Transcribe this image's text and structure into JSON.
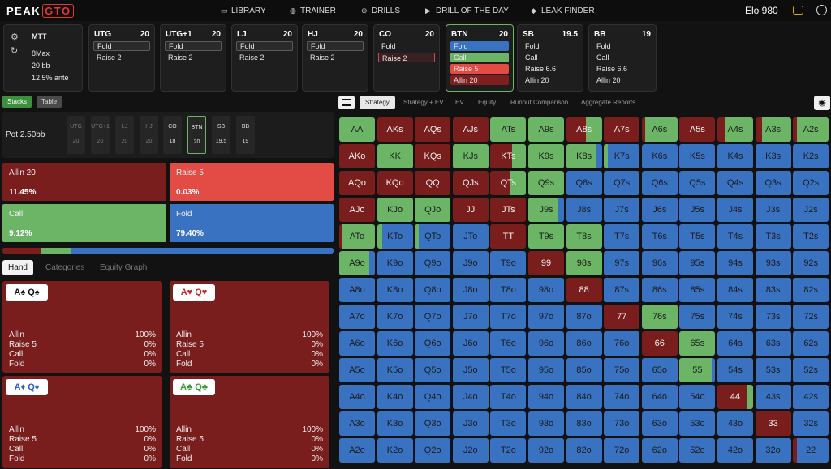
{
  "brand": {
    "name": "PEAK",
    "badge": "GTO"
  },
  "nav": [
    {
      "label": "LIBRARY",
      "icon": "monitor-icon",
      "glyph": "▭"
    },
    {
      "label": "TRAINER",
      "icon": "gamepad-icon",
      "glyph": "◍"
    },
    {
      "label": "DRILLS",
      "icon": "target-icon",
      "glyph": "⊕"
    },
    {
      "label": "DRILL OF THE DAY",
      "icon": "play-circle-icon",
      "glyph": "▶"
    },
    {
      "label": "LEAK FINDER",
      "icon": "drop-icon",
      "glyph": "◆"
    }
  ],
  "elo": "Elo 980",
  "game": {
    "type": "MTT",
    "table": "8Max",
    "stack": "20 bb",
    "ante": "12.5% ante"
  },
  "positions": [
    {
      "name": "UTG",
      "stack": "20",
      "options": [
        {
          "label": "Fold",
          "style": "sel"
        },
        {
          "label": "Raise 2",
          "style": ""
        }
      ]
    },
    {
      "name": "UTG+1",
      "stack": "20",
      "options": [
        {
          "label": "Fold",
          "style": "sel"
        },
        {
          "label": "Raise 2",
          "style": ""
        }
      ]
    },
    {
      "name": "LJ",
      "stack": "20",
      "options": [
        {
          "label": "Fold",
          "style": "sel"
        },
        {
          "label": "Raise 2",
          "style": ""
        }
      ]
    },
    {
      "name": "HJ",
      "stack": "20",
      "options": [
        {
          "label": "Fold",
          "style": "sel"
        },
        {
          "label": "Raise 2",
          "style": ""
        }
      ]
    },
    {
      "name": "CO",
      "stack": "20",
      "options": [
        {
          "label": "Fold",
          "style": ""
        },
        {
          "label": "Raise 2",
          "style": "red"
        }
      ]
    },
    {
      "name": "BTN",
      "stack": "20",
      "options": [
        {
          "label": "Fold",
          "style": "fblue"
        },
        {
          "label": "Call",
          "style": "fgreen"
        },
        {
          "label": "Raise 5",
          "style": "fred"
        },
        {
          "label": "Allin 20",
          "style": "fdark"
        }
      ]
    },
    {
      "name": "SB",
      "stack": "19.5",
      "options": [
        {
          "label": "Fold",
          "style": ""
        },
        {
          "label": "Call",
          "style": ""
        },
        {
          "label": "Raise 6.6",
          "style": ""
        },
        {
          "label": "Allin 20",
          "style": ""
        }
      ]
    },
    {
      "name": "BB",
      "stack": "19",
      "options": [
        {
          "label": "Fold",
          "style": ""
        },
        {
          "label": "Call",
          "style": ""
        },
        {
          "label": "Raise 6.6",
          "style": ""
        },
        {
          "label": "Allin 20",
          "style": ""
        }
      ]
    }
  ],
  "tags": {
    "stacks": "Stacks",
    "table": "Table"
  },
  "pot": "Pot  2.50bb",
  "seats": [
    {
      "name": "UTG",
      "stack": "20"
    },
    {
      "name": "UTG+1",
      "stack": "20"
    },
    {
      "name": "LJ",
      "stack": "20"
    },
    {
      "name": "HJ",
      "stack": "20"
    },
    {
      "name": "CO",
      "stack": "18"
    },
    {
      "name": "BTN",
      "stack": "20"
    },
    {
      "name": "SB",
      "stack": "19.5"
    },
    {
      "name": "BB",
      "stack": "19"
    }
  ],
  "actions": [
    {
      "label": "Allin 20",
      "value": "11.45%",
      "color": "#7a1d1d"
    },
    {
      "label": "Raise 5",
      "value": "0.03%",
      "color": "#e34b45"
    },
    {
      "label": "Call",
      "value": "9.12%",
      "color": "#6cb567"
    },
    {
      "label": "Fold",
      "value": "79.40%",
      "color": "#3a72c2"
    }
  ],
  "freq_bar": {
    "allin": 11.45,
    "raise": 0.03,
    "call": 9.12,
    "fold": 79.4
  },
  "hand_tabs": [
    "Hand",
    "Categories",
    "Equity Graph"
  ],
  "hands": [
    {
      "card1": "A♠",
      "card2": "Q♠",
      "suit_color": "#111111",
      "rows": [
        [
          "Allin",
          "100%"
        ],
        [
          "Raise 5",
          "0%"
        ],
        [
          "Call",
          "0%"
        ],
        [
          "Fold",
          "0%"
        ]
      ]
    },
    {
      "card1": "A♥",
      "card2": "Q♥",
      "suit_color": "#c8262b",
      "rows": [
        [
          "Allin",
          "100%"
        ],
        [
          "Raise 5",
          "0%"
        ],
        [
          "Call",
          "0%"
        ],
        [
          "Fold",
          "0%"
        ]
      ]
    },
    {
      "card1": "A♦",
      "card2": "Q♦",
      "suit_color": "#2a5fc4",
      "rows": [
        [
          "Allin",
          "100%"
        ],
        [
          "Raise 5",
          "0%"
        ],
        [
          "Call",
          "0%"
        ],
        [
          "Fold",
          "0%"
        ]
      ]
    },
    {
      "card1": "A♣",
      "card2": "Q♣",
      "suit_color": "#3a9a3a",
      "rows": [
        [
          "Allin",
          "100%"
        ],
        [
          "Raise 5",
          "0%"
        ],
        [
          "Call",
          "0%"
        ],
        [
          "Fold",
          "0%"
        ]
      ]
    }
  ],
  "tabs": [
    "Strategy",
    "Strategy + EV",
    "EV",
    "Equity",
    "Runout Comparison",
    "Aggregate Reports"
  ],
  "colors": {
    "allin": "#7a1d1d",
    "raise": "#e34b45",
    "call": "#6cb567",
    "fold": "#3a72c2"
  },
  "matrix_fractions": [
    [
      [
        0,
        0,
        1,
        0
      ],
      [
        1,
        0,
        0,
        0
      ],
      [
        1,
        0,
        0,
        0
      ],
      [
        1,
        0,
        0,
        0
      ],
      [
        0,
        0,
        1,
        0
      ],
      [
        0,
        0,
        1,
        0
      ],
      [
        0.55,
        0,
        0.45,
        0
      ],
      [
        1,
        0,
        0,
        0
      ],
      [
        0.1,
        0,
        0.9,
        0
      ],
      [
        1,
        0,
        0,
        0
      ],
      [
        0.2,
        0,
        0.8,
        0
      ],
      [
        0.2,
        0,
        0.8,
        0
      ],
      [
        0.1,
        0,
        0.9,
        0
      ]
    ],
    [
      [
        1,
        0,
        0,
        0
      ],
      [
        0,
        0,
        1,
        0
      ],
      [
        1,
        0,
        0,
        0
      ],
      [
        0,
        0,
        1,
        0
      ],
      [
        0.6,
        0,
        0.4,
        0
      ],
      [
        0,
        0,
        1,
        0
      ],
      [
        0,
        0,
        0.85,
        0.15
      ],
      [
        0,
        0,
        0.1,
        0.9
      ],
      [
        0,
        0,
        0,
        1
      ],
      [
        0,
        0,
        0,
        1
      ],
      [
        0,
        0,
        0,
        1
      ],
      [
        0,
        0,
        0,
        1
      ],
      [
        0,
        0,
        0,
        1
      ]
    ],
    [
      [
        1,
        0,
        0,
        0
      ],
      [
        1,
        0,
        0,
        0
      ],
      [
        1,
        0,
        0,
        0
      ],
      [
        1,
        0,
        0,
        0
      ],
      [
        0.55,
        0,
        0.45,
        0
      ],
      [
        0,
        0,
        1,
        0
      ],
      [
        0,
        0,
        0,
        1
      ],
      [
        0,
        0,
        0,
        1
      ],
      [
        0,
        0,
        0,
        1
      ],
      [
        0,
        0,
        0,
        1
      ],
      [
        0,
        0,
        0,
        1
      ],
      [
        0,
        0,
        0,
        1
      ],
      [
        0,
        0,
        0,
        1
      ]
    ],
    [
      [
        1,
        0,
        0,
        0
      ],
      [
        0,
        0,
        1,
        0
      ],
      [
        0,
        0,
        1,
        0
      ],
      [
        1,
        0,
        0,
        0
      ],
      [
        1,
        0,
        0,
        0
      ],
      [
        0,
        0,
        0.85,
        0.15
      ],
      [
        0,
        0,
        0,
        1
      ],
      [
        0,
        0,
        0,
        1
      ],
      [
        0,
        0,
        0,
        1
      ],
      [
        0,
        0,
        0,
        1
      ],
      [
        0,
        0,
        0,
        1
      ],
      [
        0,
        0,
        0,
        1
      ],
      [
        0,
        0,
        0,
        1
      ]
    ],
    [
      [
        0.1,
        0,
        0.9,
        0
      ],
      [
        0,
        0,
        0.15,
        0.85
      ],
      [
        0,
        0,
        0.1,
        0.9
      ],
      [
        0,
        0,
        0,
        1
      ],
      [
        1,
        0,
        0,
        0
      ],
      [
        0,
        0,
        1,
        0
      ],
      [
        0,
        0,
        1,
        0
      ],
      [
        0,
        0,
        0,
        1
      ],
      [
        0,
        0,
        0,
        1
      ],
      [
        0,
        0,
        0,
        1
      ],
      [
        0,
        0,
        0,
        1
      ],
      [
        0,
        0,
        0,
        1
      ],
      [
        0,
        0,
        0,
        1
      ]
    ],
    [
      [
        0,
        0,
        0.85,
        0.15
      ],
      [
        0,
        0,
        0,
        1
      ],
      [
        0,
        0,
        0,
        1
      ],
      [
        0,
        0,
        0,
        1
      ],
      [
        0,
        0,
        0,
        1
      ],
      [
        1,
        0,
        0,
        0
      ],
      [
        0,
        0,
        1,
        0
      ],
      [
        0,
        0,
        0,
        1
      ],
      [
        0,
        0,
        0,
        1
      ],
      [
        0,
        0,
        0,
        1
      ],
      [
        0,
        0,
        0,
        1
      ],
      [
        0,
        0,
        0,
        1
      ],
      [
        0,
        0,
        0,
        1
      ]
    ],
    [
      [
        0,
        0,
        0,
        1
      ],
      [
        0,
        0,
        0,
        1
      ],
      [
        0,
        0,
        0,
        1
      ],
      [
        0,
        0,
        0,
        1
      ],
      [
        0,
        0,
        0,
        1
      ],
      [
        0,
        0,
        0,
        1
      ],
      [
        1,
        0,
        0,
        0
      ],
      [
        0,
        0,
        0,
        1
      ],
      [
        0,
        0,
        0,
        1
      ],
      [
        0,
        0,
        0,
        1
      ],
      [
        0,
        0,
        0,
        1
      ],
      [
        0,
        0,
        0,
        1
      ],
      [
        0,
        0,
        0,
        1
      ]
    ],
    [
      [
        0,
        0,
        0,
        1
      ],
      [
        0,
        0,
        0,
        1
      ],
      [
        0,
        0,
        0,
        1
      ],
      [
        0,
        0,
        0,
        1
      ],
      [
        0,
        0,
        0,
        1
      ],
      [
        0,
        0,
        0,
        1
      ],
      [
        0,
        0,
        0,
        1
      ],
      [
        1,
        0,
        0,
        0
      ],
      [
        0,
        0,
        1,
        0
      ],
      [
        0,
        0,
        0,
        1
      ],
      [
        0,
        0,
        0,
        1
      ],
      [
        0,
        0,
        0,
        1
      ],
      [
        0,
        0,
        0,
        1
      ]
    ],
    [
      [
        0,
        0,
        0,
        1
      ],
      [
        0,
        0,
        0,
        1
      ],
      [
        0,
        0,
        0,
        1
      ],
      [
        0,
        0,
        0,
        1
      ],
      [
        0,
        0,
        0,
        1
      ],
      [
        0,
        0,
        0,
        1
      ],
      [
        0,
        0,
        0,
        1
      ],
      [
        0,
        0,
        0,
        1
      ],
      [
        1,
        0,
        0,
        0
      ],
      [
        0,
        0,
        1,
        0
      ],
      [
        0,
        0,
        0,
        1
      ],
      [
        0,
        0,
        0,
        1
      ],
      [
        0,
        0,
        0,
        1
      ]
    ],
    [
      [
        0,
        0,
        0,
        1
      ],
      [
        0,
        0,
        0,
        1
      ],
      [
        0,
        0,
        0,
        1
      ],
      [
        0,
        0,
        0,
        1
      ],
      [
        0,
        0,
        0,
        1
      ],
      [
        0,
        0,
        0,
        1
      ],
      [
        0,
        0,
        0,
        1
      ],
      [
        0,
        0,
        0,
        1
      ],
      [
        0,
        0,
        0,
        1
      ],
      [
        0,
        0,
        0.9,
        0.1
      ],
      [
        0,
        0,
        0,
        1
      ],
      [
        0,
        0,
        0,
        1
      ],
      [
        0,
        0,
        0,
        1
      ]
    ],
    [
      [
        0,
        0,
        0,
        1
      ],
      [
        0,
        0,
        0,
        1
      ],
      [
        0,
        0,
        0,
        1
      ],
      [
        0,
        0,
        0,
        1
      ],
      [
        0,
        0,
        0,
        1
      ],
      [
        0,
        0,
        0,
        1
      ],
      [
        0,
        0,
        0,
        1
      ],
      [
        0,
        0,
        0,
        1
      ],
      [
        0,
        0,
        0,
        1
      ],
      [
        0,
        0,
        0,
        1
      ],
      [
        0.85,
        0,
        0.15,
        0
      ],
      [
        0,
        0,
        0,
        1
      ],
      [
        0,
        0,
        0,
        1
      ]
    ],
    [
      [
        0,
        0,
        0,
        1
      ],
      [
        0,
        0,
        0,
        1
      ],
      [
        0,
        0,
        0,
        1
      ],
      [
        0,
        0,
        0,
        1
      ],
      [
        0,
        0,
        0,
        1
      ],
      [
        0,
        0,
        0,
        1
      ],
      [
        0,
        0,
        0,
        1
      ],
      [
        0,
        0,
        0,
        1
      ],
      [
        0,
        0,
        0,
        1
      ],
      [
        0,
        0,
        0,
        1
      ],
      [
        0,
        0,
        0,
        1
      ],
      [
        1,
        0,
        0,
        0
      ],
      [
        0,
        0,
        0,
        1
      ]
    ],
    [
      [
        0,
        0,
        0,
        1
      ],
      [
        0,
        0,
        0,
        1
      ],
      [
        0,
        0,
        0,
        1
      ],
      [
        0,
        0,
        0,
        1
      ],
      [
        0,
        0,
        0,
        1
      ],
      [
        0,
        0,
        0,
        1
      ],
      [
        0,
        0,
        0,
        1
      ],
      [
        0,
        0,
        0,
        1
      ],
      [
        0,
        0,
        0,
        1
      ],
      [
        0,
        0,
        0,
        1
      ],
      [
        0,
        0,
        0,
        1
      ],
      [
        0,
        0,
        0,
        1
      ],
      [
        0.1,
        0,
        0,
        0.9
      ]
    ]
  ]
}
